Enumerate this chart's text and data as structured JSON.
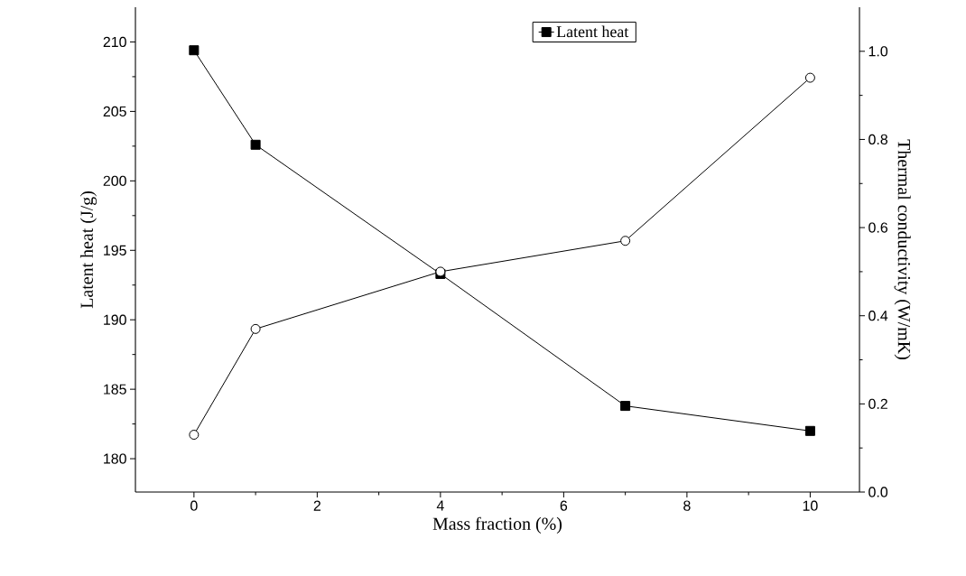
{
  "chart_data": {
    "type": "line",
    "xlabel": "Mass fraction (%)",
    "ylabel": "Latent heat (J/g)",
    "y2label": "Thermal conductivity (W/mK)",
    "x": [
      0,
      1,
      4,
      7,
      10
    ],
    "series": [
      {
        "name": "Latent heat",
        "color": "#000000",
        "marker": "square",
        "values": [
          209.4,
          202.6,
          193.3,
          183.8,
          182.0
        ]
      },
      {
        "color": "#000000",
        "marker": "circle",
        "axis": "y2",
        "values": [
          0.13,
          0.37,
          0.5,
          0.57,
          0.94
        ]
      }
    ],
    "xlim": [
      -0.95,
      10.8
    ],
    "xticks": [
      0,
      2,
      4,
      6,
      8,
      10
    ],
    "ylim": [
      177.6,
      212.5
    ],
    "yticks": [
      180,
      185,
      190,
      195,
      200,
      205,
      210
    ],
    "y2lim": [
      0,
      1.1
    ],
    "y2ticks": [
      {
        "value": 0,
        "label": "0.0"
      },
      {
        "value": 0.2,
        "label": "0.2"
      },
      {
        "value": 0.4,
        "label": "0.4"
      },
      {
        "value": 0.6,
        "label": "0.6"
      },
      {
        "value": 0.8,
        "label": "0.8"
      },
      {
        "value": 1,
        "label": "1.0"
      }
    ],
    "legend": "top",
    "grid": false,
    "line_style": "solid"
  }
}
